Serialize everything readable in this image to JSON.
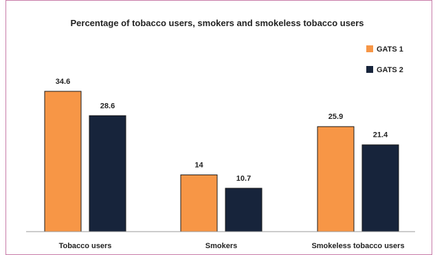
{
  "chart_data": {
    "type": "bar",
    "title": "Percentage of tobacco users, smokers and smokeless tobacco users",
    "categories": [
      "Tobacco users",
      "Smokers",
      "Smokeless tobacco users"
    ],
    "series": [
      {
        "name": "GATS 1",
        "values": [
          34.6,
          14,
          25.9
        ],
        "color": "#f79646"
      },
      {
        "name": "GATS 2",
        "values": [
          28.6,
          10.7,
          21.4
        ],
        "color": "#17243b"
      }
    ],
    "value_labels": [
      [
        "34.6",
        "14",
        "25.9"
      ],
      [
        "28.6",
        "10.7",
        "21.4"
      ]
    ],
    "xlabel": "",
    "ylabel": "",
    "ylim": [
      0,
      37
    ],
    "grid": false,
    "legend_position": "top-right",
    "bar_outline_color": "#1a1a1a",
    "axis_color": "#9a9a9a"
  }
}
